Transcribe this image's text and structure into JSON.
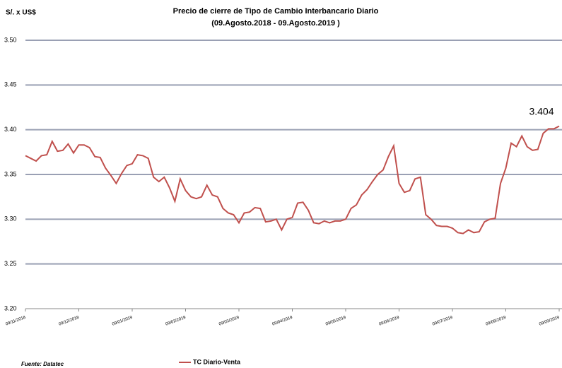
{
  "chart_data": {
    "type": "line",
    "title": "Precio de cierre de Tipo de Cambio Interbancario Diario",
    "subtitle": "(09.Agosto.2018 - 09.Agosto.2019 )",
    "y_label": "S/. x US$",
    "source": "Fuente: Datatec",
    "annotation": {
      "text": "3.404",
      "index": 100
    },
    "series": [
      {
        "name": "TC Diario-Venta",
        "color": "#c0504d",
        "values": [
          3.371,
          3.368,
          3.365,
          3.371,
          3.372,
          3.387,
          3.376,
          3.377,
          3.384,
          3.374,
          3.383,
          3.383,
          3.38,
          3.37,
          3.369,
          3.357,
          3.349,
          3.34,
          3.351,
          3.36,
          3.362,
          3.372,
          3.371,
          3.368,
          3.347,
          3.342,
          3.347,
          3.335,
          3.32,
          3.345,
          3.332,
          3.325,
          3.323,
          3.325,
          3.338,
          3.327,
          3.325,
          3.312,
          3.307,
          3.305,
          3.296,
          3.307,
          3.308,
          3.313,
          3.312,
          3.297,
          3.298,
          3.3,
          3.288,
          3.3,
          3.302,
          3.318,
          3.319,
          3.31,
          3.296,
          3.295,
          3.298,
          3.296,
          3.298,
          3.298,
          3.3,
          3.312,
          3.316,
          3.327,
          3.333,
          3.342,
          3.35,
          3.355,
          3.37,
          3.382,
          3.34,
          3.33,
          3.332,
          3.345,
          3.347,
          3.305,
          3.3,
          3.293,
          3.292,
          3.292,
          3.29,
          3.285,
          3.284,
          3.288,
          3.285,
          3.286,
          3.297,
          3.3,
          3.301,
          3.34,
          3.357,
          3.385,
          3.381,
          3.393,
          3.381,
          3.377,
          3.378,
          3.396,
          3.401,
          3.401,
          3.404
        ]
      }
    ],
    "xlim": [
      0,
      100
    ],
    "xticks": [
      {
        "value": 0,
        "label": "09/11/2018"
      },
      {
        "value": 10,
        "label": "09/12/2018"
      },
      {
        "value": 20,
        "label": "09/01/2019"
      },
      {
        "value": 30,
        "label": "09/02/2019"
      },
      {
        "value": 40,
        "label": "09/03/2019"
      },
      {
        "value": 50,
        "label": "09/04/2019"
      },
      {
        "value": 60,
        "label": "09/05/2019"
      },
      {
        "value": 70,
        "label": "09/06/2019"
      },
      {
        "value": 80,
        "label": "09/07/2019"
      },
      {
        "value": 90,
        "label": "09/08/2019"
      },
      {
        "value": 100,
        "label": "09/09/2019"
      }
    ],
    "ylim": [
      3.2,
      3.5
    ],
    "yticks": [
      {
        "value": 3.2,
        "label": "3.20"
      },
      {
        "value": 3.25,
        "label": "3.25"
      },
      {
        "value": 3.3,
        "label": "3.30"
      },
      {
        "value": 3.35,
        "label": "3.35"
      },
      {
        "value": 3.4,
        "label": "3.40"
      },
      {
        "value": 3.45,
        "label": "3.45"
      },
      {
        "value": 3.5,
        "label": "3.50"
      }
    ],
    "grid": true
  }
}
